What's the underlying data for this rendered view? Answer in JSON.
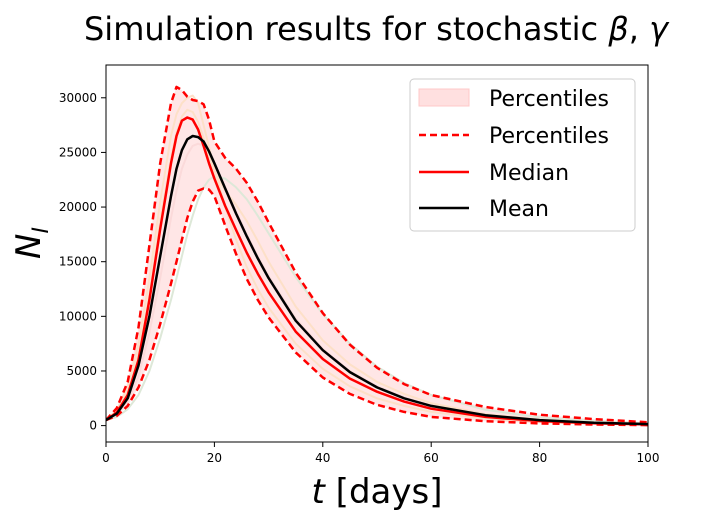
{
  "chart_data": {
    "type": "line",
    "title": "Simulation results for stochastic β, γ",
    "title_prefix": "Simulation results for stochastic ",
    "title_symbols": [
      "β",
      "γ"
    ],
    "title_separator": ", ",
    "xlabel": "t [days]",
    "xlabel_symbol": "t",
    "xlabel_unit": " [days]",
    "ylabel": "N_I",
    "ylabel_symbol": "N",
    "ylabel_subscript": "I",
    "xlim": [
      0,
      100
    ],
    "ylim": [
      -1500,
      33000
    ],
    "x_ticks": [
      0,
      20,
      40,
      60,
      80,
      100
    ],
    "y_ticks": [
      0,
      5000,
      10000,
      15000,
      20000,
      25000,
      30000
    ],
    "legend": {
      "placement": "top-right",
      "entries": [
        {
          "label": "Percentiles",
          "style": "band"
        },
        {
          "label": "Percentiles",
          "style": "dashed"
        },
        {
          "label": "Median",
          "style": "solid"
        },
        {
          "label": "Mean",
          "style": "solid"
        }
      ]
    },
    "colors": {
      "percentile_band": "#ffe0e0",
      "percentile_line": "#ff0000",
      "median": "#ff0000",
      "mean": "#000000",
      "trajectories": [
        "#fde0c8",
        "#dde8d8",
        "#fbdada"
      ]
    },
    "x": [
      0,
      2,
      4,
      6,
      8,
      10,
      12,
      13,
      14,
      15,
      16,
      17,
      18,
      19,
      20,
      22,
      24,
      26,
      28,
      30,
      35,
      40,
      45,
      50,
      55,
      60,
      70,
      80,
      90,
      100
    ],
    "series": [
      {
        "name": "Percentiles",
        "role": "upper",
        "values": [
          500,
          1600,
          4000,
          9000,
          16500,
          24000,
          29500,
          31000,
          30700,
          30100,
          29800,
          29700,
          29400,
          28000,
          26000,
          24500,
          23500,
          22200,
          20500,
          18600,
          14000,
          10300,
          7400,
          5300,
          3800,
          2800,
          1700,
          1000,
          600,
          300
        ]
      },
      {
        "name": "Percentiles",
        "role": "lower",
        "values": [
          500,
          900,
          1800,
          3500,
          6000,
          9300,
          13000,
          15000,
          17000,
          19000,
          20500,
          21500,
          21700,
          21600,
          21000,
          18300,
          15700,
          13400,
          11500,
          9900,
          6700,
          4400,
          2900,
          1900,
          1250,
          800,
          400,
          200,
          100,
          50
        ]
      },
      {
        "name": "Median",
        "values": [
          500,
          1200,
          2800,
          6000,
          11500,
          18000,
          24000,
          26500,
          27900,
          28200,
          28000,
          27100,
          25600,
          24000,
          22600,
          20100,
          17900,
          15800,
          13900,
          12200,
          8600,
          6100,
          4300,
          3100,
          2200,
          1550,
          800,
          420,
          220,
          110
        ]
      },
      {
        "name": "Mean",
        "values": [
          500,
          1100,
          2500,
          5500,
          10000,
          15500,
          21000,
          23500,
          25200,
          26200,
          26500,
          26400,
          26000,
          25100,
          24000,
          21700,
          19400,
          17300,
          15300,
          13500,
          9600,
          6900,
          4900,
          3500,
          2500,
          1800,
          950,
          500,
          270,
          140
        ]
      },
      {
        "name": "",
        "role": "trajectory",
        "values": [
          500,
          1400,
          3500,
          7500,
          13500,
          20500,
          26500,
          28500,
          29500,
          30000,
          30200,
          29500,
          27500,
          25500,
          23500,
          20000,
          17000,
          14500,
          12500,
          10800,
          7500,
          5200,
          3600,
          2500,
          1800,
          1250,
          650,
          340,
          180,
          90
        ]
      },
      {
        "name": "",
        "role": "trajectory",
        "values": [
          500,
          800,
          1500,
          2800,
          5000,
          8000,
          11500,
          13500,
          15500,
          17500,
          19200,
          20700,
          21800,
          22500,
          22800,
          22600,
          21800,
          20700,
          19200,
          17600,
          13600,
          10200,
          7500,
          5400,
          3900,
          2800,
          1450,
          750,
          390,
          200
        ]
      },
      {
        "name": "",
        "role": "trajectory",
        "values": [
          500,
          1000,
          2200,
          4500,
          8500,
          13500,
          19000,
          21500,
          23500,
          24800,
          25600,
          25800,
          25600,
          25000,
          24000,
          21800,
          19600,
          17500,
          15500,
          13700,
          9800,
          7000,
          5000,
          3600,
          2600,
          1850,
          950,
          490,
          250,
          130
        ]
      },
      {
        "name": "",
        "role": "trajectory",
        "values": [
          500,
          1300,
          3100,
          6600,
          12000,
          18800,
          24500,
          26800,
          28300,
          28900,
          28700,
          27800,
          26300,
          24700,
          23200,
          21500,
          20200,
          18700,
          16900,
          15000,
          10900,
          7800,
          5600,
          4000,
          2900,
          2050,
          1050,
          540,
          280,
          140
        ]
      }
    ]
  }
}
